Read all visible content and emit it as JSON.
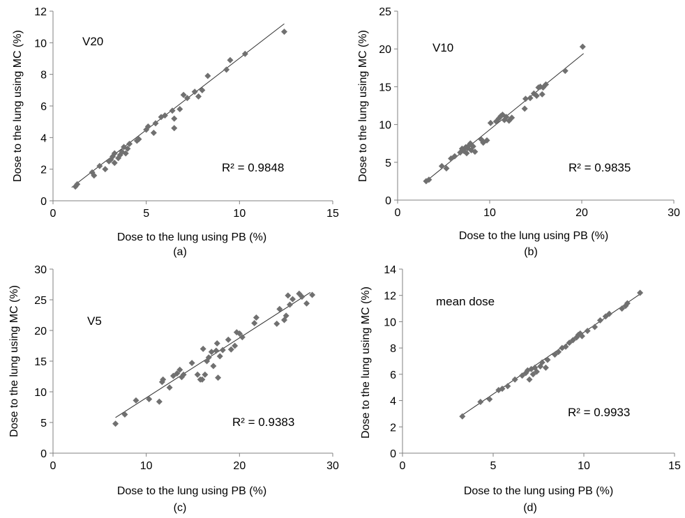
{
  "figure": {
    "panels": [
      {
        "id": "a",
        "caption": "(a)",
        "annotation": "V20",
        "r2_text": "R² = 0.9848",
        "xlabel": "Dose to the lung using PB (%)",
        "ylabel": "Dose to the lung using MC (%)",
        "xticks": [
          "0",
          "5",
          "10",
          "15"
        ],
        "yticks": [
          "0",
          "2",
          "4",
          "6",
          "8",
          "10",
          "12"
        ]
      },
      {
        "id": "b",
        "caption": "(b)",
        "annotation": "V10",
        "r2_text": "R² = 0.9835",
        "xlabel": "Dose to the lung using PB (%)",
        "ylabel": "Dose to the lung using MC (%)",
        "xticks": [
          "0",
          "10",
          "20",
          "30"
        ],
        "yticks": [
          "0",
          "5",
          "10",
          "15",
          "20",
          "25"
        ]
      },
      {
        "id": "c",
        "caption": "(c)",
        "annotation": "V5",
        "r2_text": "R² = 0.9383",
        "xlabel": "Dose to the lung using PB (%)",
        "ylabel": "Dose to the lung using MC (%)",
        "xticks": [
          "0",
          "10",
          "20",
          "30"
        ],
        "yticks": [
          "0",
          "5",
          "10",
          "15",
          "20",
          "25",
          "30"
        ]
      },
      {
        "id": "d",
        "caption": "(d)",
        "annotation": "mean dose",
        "r2_text": "R² = 0.9933",
        "xlabel": "Dose to the lung using PB (%)",
        "ylabel": "Dose to the lung using MC (%)",
        "xticks": [
          "0",
          "5",
          "10",
          "15"
        ],
        "yticks": [
          "0",
          "2",
          "4",
          "6",
          "8",
          "10",
          "12",
          "14"
        ]
      }
    ],
    "colors": {
      "marker": "#707070",
      "trendline": "#303030",
      "axis": "#808080"
    }
  },
  "chart_data": [
    {
      "type": "scatter",
      "panel": "a",
      "xlim": [
        0,
        15
      ],
      "ylim": [
        0,
        12
      ],
      "grid": false,
      "trendline": {
        "x": [
          1.0,
          12.4
        ],
        "y": [
          0.85,
          11.2
        ]
      },
      "points": [
        [
          1.2,
          0.9
        ],
        [
          1.3,
          1.05
        ],
        [
          2.1,
          1.8
        ],
        [
          2.2,
          1.6
        ],
        [
          2.5,
          2.2
        ],
        [
          2.8,
          2.0
        ],
        [
          3.0,
          2.5
        ],
        [
          3.1,
          2.6
        ],
        [
          3.2,
          2.8
        ],
        [
          3.3,
          2.4
        ],
        [
          3.3,
          3.0
        ],
        [
          3.5,
          2.7
        ],
        [
          3.6,
          2.9
        ],
        [
          3.7,
          3.1
        ],
        [
          3.8,
          3.4
        ],
        [
          3.9,
          3.0
        ],
        [
          4.0,
          3.3
        ],
        [
          4.1,
          3.6
        ],
        [
          4.5,
          3.8
        ],
        [
          4.6,
          3.9
        ],
        [
          5.0,
          4.5
        ],
        [
          5.1,
          4.7
        ],
        [
          5.4,
          4.3
        ],
        [
          5.5,
          4.9
        ],
        [
          5.8,
          5.3
        ],
        [
          6.0,
          5.4
        ],
        [
          6.4,
          5.7
        ],
        [
          6.5,
          4.6
        ],
        [
          6.5,
          5.2
        ],
        [
          6.8,
          5.8
        ],
        [
          7.0,
          6.7
        ],
        [
          7.2,
          6.5
        ],
        [
          7.6,
          6.9
        ],
        [
          7.8,
          6.6
        ],
        [
          8.0,
          7.0
        ],
        [
          8.3,
          7.9
        ],
        [
          9.3,
          8.3
        ],
        [
          9.5,
          8.9
        ],
        [
          10.3,
          9.3
        ],
        [
          12.4,
          10.7
        ]
      ]
    },
    {
      "type": "scatter",
      "panel": "b",
      "xlim": [
        0,
        30
      ],
      "ylim": [
        0,
        25
      ],
      "grid": false,
      "trendline": {
        "x": [
          3.0,
          20.2
        ],
        "y": [
          2.4,
          19.4
        ]
      },
      "points": [
        [
          3.1,
          2.5
        ],
        [
          3.4,
          2.7
        ],
        [
          4.8,
          4.5
        ],
        [
          5.3,
          4.2
        ],
        [
          5.8,
          5.5
        ],
        [
          6.2,
          5.8
        ],
        [
          6.8,
          6.3
        ],
        [
          7.0,
          6.8
        ],
        [
          7.2,
          6.5
        ],
        [
          7.4,
          7.0
        ],
        [
          7.5,
          6.2
        ],
        [
          7.6,
          6.9
        ],
        [
          7.8,
          7.3
        ],
        [
          7.9,
          7.5
        ],
        [
          8.0,
          6.6
        ],
        [
          8.2,
          7.1
        ],
        [
          8.4,
          6.4
        ],
        [
          9.1,
          8.0
        ],
        [
          9.3,
          7.6
        ],
        [
          9.7,
          7.9
        ],
        [
          10.1,
          10.2
        ],
        [
          10.7,
          10.4
        ],
        [
          11.0,
          10.8
        ],
        [
          11.2,
          11.1
        ],
        [
          11.4,
          11.3
        ],
        [
          11.6,
          10.6
        ],
        [
          11.8,
          11.0
        ],
        [
          12.1,
          10.5
        ],
        [
          12.4,
          10.9
        ],
        [
          13.8,
          12.1
        ],
        [
          13.9,
          13.4
        ],
        [
          14.4,
          13.5
        ],
        [
          14.8,
          14.1
        ],
        [
          15.1,
          13.8
        ],
        [
          15.3,
          14.9
        ],
        [
          15.5,
          15.0
        ],
        [
          15.7,
          14.0
        ],
        [
          15.8,
          14.9
        ],
        [
          16.1,
          15.3
        ],
        [
          18.2,
          17.1
        ],
        [
          20.1,
          20.3
        ]
      ]
    },
    {
      "type": "scatter",
      "panel": "c",
      "xlim": [
        0,
        30
      ],
      "ylim": [
        0,
        30
      ],
      "grid": false,
      "trendline": {
        "x": [
          6.7,
          27.6
        ],
        "y": [
          5.8,
          26.2
        ]
      },
      "points": [
        [
          6.7,
          4.8
        ],
        [
          7.7,
          6.3
        ],
        [
          8.9,
          8.6
        ],
        [
          10.3,
          8.8
        ],
        [
          11.4,
          8.4
        ],
        [
          11.7,
          11.6
        ],
        [
          11.8,
          12.0
        ],
        [
          12.5,
          10.7
        ],
        [
          12.9,
          12.6
        ],
        [
          13.3,
          13.0
        ],
        [
          13.6,
          13.6
        ],
        [
          13.8,
          12.4
        ],
        [
          14.0,
          12.8
        ],
        [
          14.9,
          14.7
        ],
        [
          15.5,
          12.8
        ],
        [
          15.8,
          12.0
        ],
        [
          16.0,
          12.0
        ],
        [
          16.1,
          17.0
        ],
        [
          16.3,
          12.8
        ],
        [
          16.5,
          15.0
        ],
        [
          16.7,
          15.6
        ],
        [
          17.0,
          16.5
        ],
        [
          17.2,
          14.2
        ],
        [
          17.5,
          16.7
        ],
        [
          17.6,
          17.9
        ],
        [
          17.7,
          12.3
        ],
        [
          17.9,
          15.8
        ],
        [
          18.2,
          16.8
        ],
        [
          18.8,
          18.5
        ],
        [
          19.1,
          16.9
        ],
        [
          19.5,
          17.5
        ],
        [
          19.7,
          19.7
        ],
        [
          20.0,
          19.5
        ],
        [
          20.3,
          18.9
        ],
        [
          21.6,
          21.2
        ],
        [
          21.8,
          22.1
        ],
        [
          24.0,
          21.1
        ],
        [
          24.3,
          23.5
        ],
        [
          24.8,
          21.7
        ],
        [
          25.0,
          22.4
        ],
        [
          25.2,
          25.7
        ],
        [
          25.4,
          24.2
        ],
        [
          25.7,
          25.1
        ],
        [
          26.4,
          26.0
        ],
        [
          26.7,
          25.5
        ],
        [
          27.2,
          24.4
        ],
        [
          27.8,
          25.8
        ]
      ]
    },
    {
      "type": "scatter",
      "panel": "d",
      "xlim": [
        0,
        15
      ],
      "ylim": [
        0,
        14
      ],
      "grid": false,
      "trendline": {
        "x": [
          3.3,
          13.1
        ],
        "y": [
          2.9,
          12.1
        ]
      },
      "points": [
        [
          3.3,
          2.8
        ],
        [
          4.3,
          3.9
        ],
        [
          4.8,
          4.1
        ],
        [
          5.3,
          4.8
        ],
        [
          5.5,
          4.9
        ],
        [
          5.8,
          5.1
        ],
        [
          6.2,
          5.6
        ],
        [
          6.6,
          5.9
        ],
        [
          6.8,
          6.1
        ],
        [
          6.9,
          6.3
        ],
        [
          7.0,
          5.6
        ],
        [
          7.1,
          6.4
        ],
        [
          7.2,
          6.0
        ],
        [
          7.3,
          6.5
        ],
        [
          7.4,
          6.2
        ],
        [
          7.6,
          6.6
        ],
        [
          7.7,
          6.9
        ],
        [
          7.9,
          6.5
        ],
        [
          8.0,
          7.1
        ],
        [
          8.4,
          7.5
        ],
        [
          8.6,
          7.7
        ],
        [
          8.8,
          8.0
        ],
        [
          9.0,
          8.1
        ],
        [
          9.2,
          8.4
        ],
        [
          9.4,
          8.6
        ],
        [
          9.6,
          8.8
        ],
        [
          9.7,
          9.0
        ],
        [
          9.8,
          9.1
        ],
        [
          9.9,
          8.9
        ],
        [
          10.2,
          9.3
        ],
        [
          10.6,
          9.6
        ],
        [
          10.9,
          10.1
        ],
        [
          11.2,
          10.4
        ],
        [
          11.4,
          10.6
        ],
        [
          12.1,
          11.0
        ],
        [
          12.3,
          11.2
        ],
        [
          12.4,
          11.4
        ],
        [
          13.1,
          12.2
        ]
      ]
    }
  ]
}
